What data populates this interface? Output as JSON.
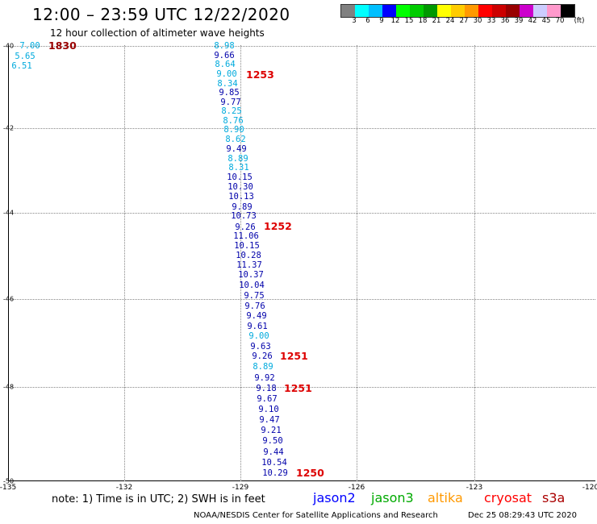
{
  "header": {
    "title": "12:00 – 23:59 UTC 12/22/2020",
    "subtitle": "12 hour collection of altimeter wave heights"
  },
  "legend": {
    "unit": "(ft)",
    "colors": [
      "#808080",
      "#00ffff",
      "#00bfff",
      "#0000ff",
      "#00ff00",
      "#00cc00",
      "#009900",
      "#ffff00",
      "#ffcc00",
      "#ff9900",
      "#ff0000",
      "#cc0000",
      "#990000",
      "#cc00cc",
      "#ccccff",
      "#ff99cc",
      "#000000"
    ],
    "labels": [
      "3",
      "6",
      "9",
      "12",
      "15",
      "18",
      "21",
      "24",
      "27",
      "30",
      "33",
      "36",
      "39",
      "42",
      "45",
      "70"
    ]
  },
  "axes": {
    "lat_labels": [
      "-40",
      "-42",
      "-44",
      "-46",
      "-48",
      "-50"
    ],
    "lon_labels": [
      "-135",
      "-132",
      "-129",
      "-126",
      "-123",
      "-120"
    ]
  },
  "time_labels": [
    "1830",
    "1253",
    "1252",
    "1251",
    "1251",
    "1250"
  ],
  "observations": [
    {
      "v": "7.00",
      "c": "#00aadd"
    },
    {
      "v": "5.65",
      "c": "#00aadd"
    },
    {
      "v": "6.51",
      "c": "#00aadd"
    },
    {
      "v": "8.98",
      "c": "#00aadd"
    },
    {
      "v": "9.66",
      "c": "#0000aa"
    },
    {
      "v": "8.64",
      "c": "#00aadd"
    },
    {
      "v": "9.00",
      "c": "#00aadd"
    },
    {
      "v": "8.34",
      "c": "#00aadd"
    },
    {
      "v": "9.85",
      "c": "#0000aa"
    },
    {
      "v": "9.77",
      "c": "#0000aa"
    },
    {
      "v": "8.25",
      "c": "#00aadd"
    },
    {
      "v": "8.76",
      "c": "#00aadd"
    },
    {
      "v": "8.90",
      "c": "#00aadd"
    },
    {
      "v": "8.62",
      "c": "#00aadd"
    },
    {
      "v": "9.49",
      "c": "#0000aa"
    },
    {
      "v": "8.89",
      "c": "#00aadd"
    },
    {
      "v": "8.31",
      "c": "#00aadd"
    },
    {
      "v": "10.15",
      "c": "#0000aa"
    },
    {
      "v": "10.30",
      "c": "#0000aa"
    },
    {
      "v": "10.13",
      "c": "#0000aa"
    },
    {
      "v": "9.89",
      "c": "#0000aa"
    },
    {
      "v": "10.73",
      "c": "#0000aa"
    },
    {
      "v": "9.26",
      "c": "#0000aa"
    },
    {
      "v": "11.06",
      "c": "#0000aa"
    },
    {
      "v": "10.15",
      "c": "#0000aa"
    },
    {
      "v": "10.28",
      "c": "#0000aa"
    },
    {
      "v": "11.37",
      "c": "#0000aa"
    },
    {
      "v": "10.37",
      "c": "#0000aa"
    },
    {
      "v": "10.04",
      "c": "#0000aa"
    },
    {
      "v": "9.75",
      "c": "#0000aa"
    },
    {
      "v": "9.76",
      "c": "#0000aa"
    },
    {
      "v": "9.49",
      "c": "#0000aa"
    },
    {
      "v": "9.61",
      "c": "#0000aa"
    },
    {
      "v": "9.00",
      "c": "#00aadd"
    },
    {
      "v": "9.63",
      "c": "#0000aa"
    },
    {
      "v": "9.26",
      "c": "#0000aa"
    },
    {
      "v": "8.89",
      "c": "#00aadd"
    },
    {
      "v": "9.92",
      "c": "#0000aa"
    },
    {
      "v": "9.18",
      "c": "#0000aa"
    },
    {
      "v": "9.67",
      "c": "#0000aa"
    },
    {
      "v": "9.10",
      "c": "#0000aa"
    },
    {
      "v": "9.47",
      "c": "#0000aa"
    },
    {
      "v": "9.21",
      "c": "#0000aa"
    },
    {
      "v": "9.50",
      "c": "#0000aa"
    },
    {
      "v": "9.44",
      "c": "#0000aa"
    },
    {
      "v": "10.54",
      "c": "#0000aa"
    },
    {
      "v": "10.29",
      "c": "#0000aa"
    }
  ],
  "footer": {
    "note": "note:  1) Time is in UTC;  2) SWH is in feet",
    "satellites": [
      {
        "name": "jason2",
        "color": "#0000ff"
      },
      {
        "name": "jason3",
        "color": "#00aa00"
      },
      {
        "name": "altika",
        "color": "#ff9900"
      },
      {
        "name": "cryosat",
        "color": "#ff0000"
      },
      {
        "name": "s3a",
        "color": "#aa0000"
      }
    ],
    "credit": "NOAA/NESDIS Center for Satellite Applications and Research",
    "timestamp": "Dec 25 08:29:43 UTC 2020"
  }
}
